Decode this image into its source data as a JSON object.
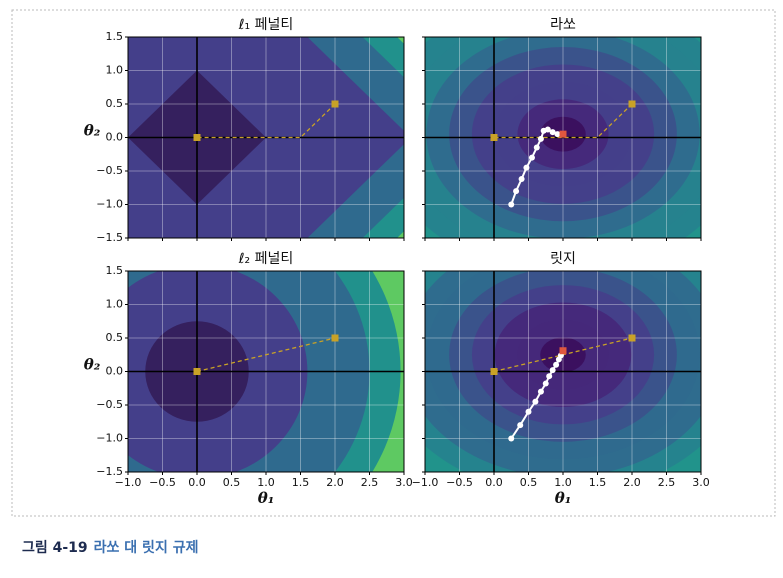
{
  "chart_data": [
    {
      "type": "line",
      "title": "ℓ₁ 페널티",
      "ylabel": "θ₂",
      "xlim": [
        -1,
        3
      ],
      "ylim": [
        -1.5,
        1.5
      ],
      "xticks": [
        -1,
        -0.5,
        0,
        0.5,
        1,
        1.5,
        2,
        2.5,
        3
      ],
      "xtick_labels": false,
      "yticks": [
        {
          "value": -1.5,
          "label": "−1.5"
        },
        {
          "value": -1,
          "label": "−1.0"
        },
        {
          "value": -0.5,
          "label": "−0.5"
        },
        {
          "value": 0,
          "label": "0.0"
        },
        {
          "value": 0.5,
          "label": "0.5"
        },
        {
          "value": 1,
          "label": "1.0"
        },
        {
          "value": 1.5,
          "label": "1.5"
        }
      ],
      "ytick_labels": true,
      "grid": true,
      "series": [
        {
          "x": [
            2.0,
            1.5,
            0.0
          ],
          "values": [
            0.5,
            0.0,
            0.0
          ],
          "color": "#c9a227",
          "line": "dashed",
          "markers": "ends",
          "marker": "square"
        }
      ]
    },
    {
      "type": "line",
      "title": "라쏘",
      "xlim": [
        -1,
        3
      ],
      "ylim": [
        -1.5,
        1.5
      ],
      "xticks": [
        -1,
        -0.5,
        0,
        0.5,
        1,
        1.5,
        2,
        2.5,
        3
      ],
      "xtick_labels": false,
      "yticks": [
        -1.5,
        -1,
        -0.5,
        0,
        0.5,
        1,
        1.5
      ],
      "ytick_labels": false,
      "grid": true,
      "series": [
        {
          "x": [
            2.0,
            1.5,
            0.0
          ],
          "values": [
            0.5,
            0.0,
            0.0
          ],
          "color": "#c9a227",
          "line": "dashed",
          "markers": "ends",
          "marker": "square"
        },
        {
          "x": [
            0.25,
            0.32,
            0.4,
            0.47,
            0.55,
            0.62,
            0.68,
            0.72,
            0.78,
            0.85,
            0.92,
            1.0
          ],
          "values": [
            -1.0,
            -0.8,
            -0.62,
            -0.45,
            -0.3,
            -0.15,
            -0.02,
            0.1,
            0.12,
            0.08,
            0.05,
            0.05
          ],
          "color": "#ffffff",
          "line": "solid",
          "markers": "all",
          "marker": "circle"
        },
        {
          "x": [
            1.0
          ],
          "values": [
            0.05
          ],
          "color": "#e0573f",
          "line": "none",
          "markers": "all",
          "marker": "square"
        }
      ]
    },
    {
      "type": "line",
      "title": "ℓ₂ 페널티",
      "xlabel": "θ₁",
      "ylabel": "θ₂",
      "xlim": [
        -1,
        3
      ],
      "ylim": [
        -1.5,
        1.5
      ],
      "xticks": [
        {
          "value": -1,
          "label": "−1.0"
        },
        {
          "value": -0.5,
          "label": "−0.5"
        },
        {
          "value": 0,
          "label": "0.0"
        },
        {
          "value": 0.5,
          "label": "0.5"
        },
        {
          "value": 1,
          "label": "1.0"
        },
        {
          "value": 1.5,
          "label": "1.5"
        },
        {
          "value": 2,
          "label": "2.0"
        },
        {
          "value": 2.5,
          "label": "2.5"
        },
        {
          "value": 3,
          "label": "3.0"
        }
      ],
      "xtick_labels": true,
      "yticks": [
        {
          "value": -1.5,
          "label": "−1.5"
        },
        {
          "value": -1,
          "label": "−1.0"
        },
        {
          "value": -0.5,
          "label": "−0.5"
        },
        {
          "value": 0,
          "label": "0.0"
        },
        {
          "value": 0.5,
          "label": "0.5"
        },
        {
          "value": 1,
          "label": "1.0"
        },
        {
          "value": 1.5,
          "label": "1.5"
        }
      ],
      "ytick_labels": true,
      "grid": true,
      "series": [
        {
          "x": [
            0.0,
            2.0
          ],
          "values": [
            0.0,
            0.5
          ],
          "color": "#c9a227",
          "line": "dashed",
          "markers": "ends",
          "marker": "square"
        }
      ]
    },
    {
      "type": "line",
      "title": "릿지",
      "xlabel": "θ₁",
      "xlim": [
        -1,
        3
      ],
      "ylim": [
        -1.5,
        1.5
      ],
      "xticks": [
        {
          "value": -1,
          "label": "−1.0"
        },
        {
          "value": -0.5,
          "label": "−0.5"
        },
        {
          "value": 0,
          "label": "0.0"
        },
        {
          "value": 0.5,
          "label": "0.5"
        },
        {
          "value": 1,
          "label": "1.0"
        },
        {
          "value": 1.5,
          "label": "1.5"
        },
        {
          "value": 2,
          "label": "2.0"
        },
        {
          "value": 2.5,
          "label": "2.5"
        },
        {
          "value": 3,
          "label": "3.0"
        }
      ],
      "xtick_labels": true,
      "yticks": [
        -1.5,
        -1,
        -0.5,
        0,
        0.5,
        1,
        1.5
      ],
      "ytick_labels": false,
      "grid": true,
      "series": [
        {
          "x": [
            0.0,
            2.0
          ],
          "values": [
            0.0,
            0.5
          ],
          "color": "#c9a227",
          "line": "dashed",
          "markers": "ends",
          "marker": "square"
        },
        {
          "x": [
            0.25,
            0.38,
            0.5,
            0.6,
            0.68,
            0.75,
            0.8,
            0.85,
            0.9,
            0.94,
            0.97,
            1.0
          ],
          "values": [
            -1.0,
            -0.8,
            -0.6,
            -0.45,
            -0.3,
            -0.18,
            -0.07,
            0.02,
            0.1,
            0.18,
            0.24,
            0.3
          ],
          "color": "#ffffff",
          "line": "solid",
          "markers": "all",
          "marker": "circle"
        },
        {
          "x": [
            1.0
          ],
          "values": [
            0.31
          ],
          "color": "#e0573f",
          "line": "none",
          "markers": "all",
          "marker": "square"
        }
      ]
    }
  ],
  "caption": {
    "label": "그림 4-19",
    "text": "라쏘 대 릿지 규제"
  }
}
